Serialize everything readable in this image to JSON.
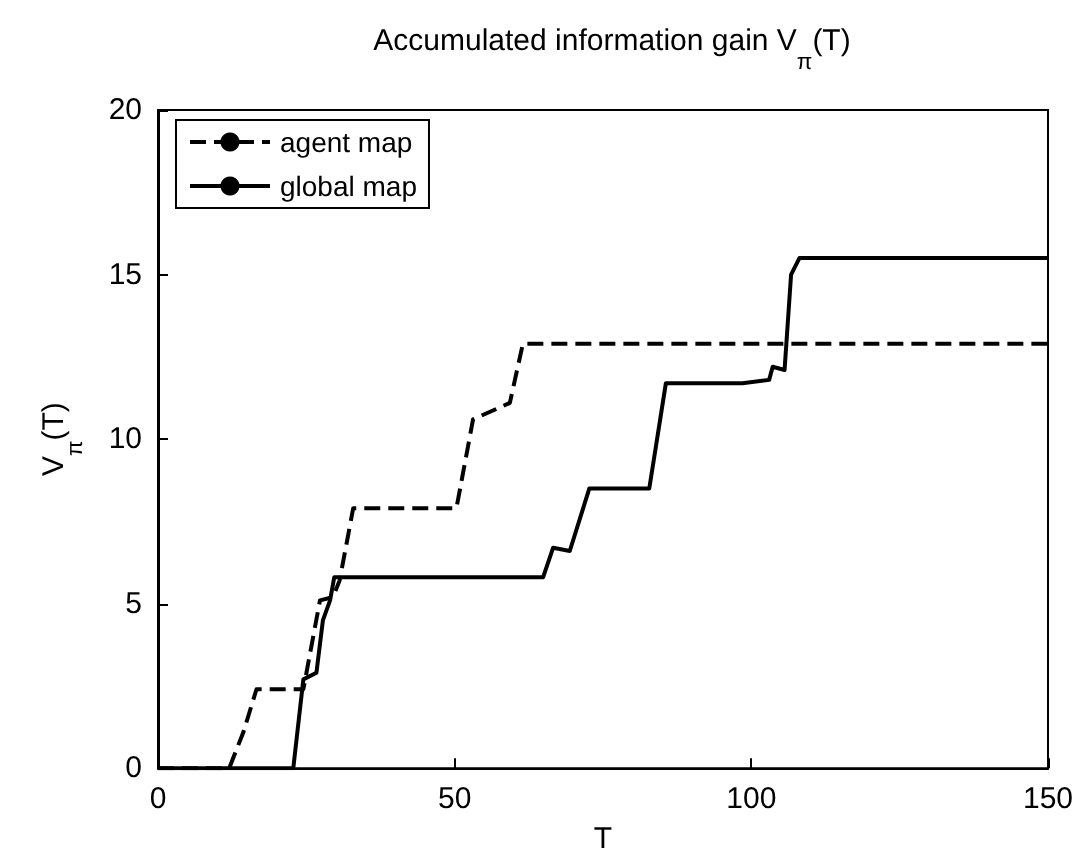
{
  "chart_data": {
    "type": "line",
    "title": "Accumulated information gain V$_{π}$(T)",
    "xlabel": "T",
    "ylabel": "V$_{π}$(T)",
    "xlim": [
      0,
      150
    ],
    "xticks": [
      0,
      50,
      100,
      150
    ],
    "ylim": [
      0,
      20
    ],
    "yticks": [
      0,
      5,
      10,
      15,
      20
    ],
    "grid": false,
    "legend": "top left",
    "marker": "none",
    "series": [
      {
        "name": "agent map",
        "color": "#000000",
        "line_style": "dashed",
        "x": [
          0,
          12,
          14.4,
          16.6,
          24.5,
          27.3,
          29.5,
          30.6,
          32.9,
          50.3,
          53.1,
          59.3,
          61.5,
          150
        ],
        "values": [
          0,
          0,
          1.1,
          2.4,
          2.4,
          5.1,
          5.2,
          5.7,
          7.9,
          7.9,
          10.6,
          11.1,
          12.9,
          12.9
        ]
      },
      {
        "name": "global map",
        "color": "#000000",
        "line_style": "solid",
        "x": [
          0,
          22.8,
          24.5,
          26.7,
          27.8,
          29,
          29.7,
          64.9,
          66.6,
          69.4,
          72.7,
          82.8,
          85.6,
          98.5,
          103,
          103.6,
          105.6,
          106.7,
          108.1,
          150
        ],
        "values": [
          0,
          0,
          2.7,
          2.9,
          4.5,
          5.1,
          5.8,
          5.8,
          6.7,
          6.6,
          8.5,
          8.5,
          11.7,
          11.7,
          11.8,
          12.2,
          12.1,
          15.0,
          15.5,
          15.5
        ]
      }
    ]
  }
}
